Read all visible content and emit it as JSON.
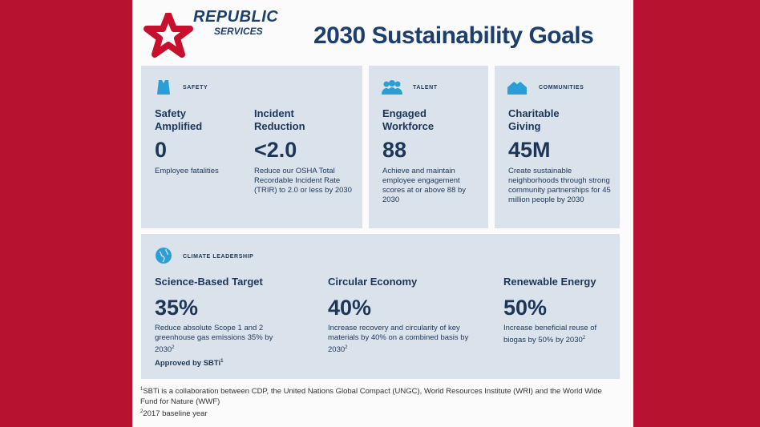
{
  "brand": {
    "name": "REPUBLIC",
    "sub": "SERVICES",
    "logo_color": "#c8102e"
  },
  "title": "2030 Sustainability Goals",
  "colors": {
    "background": "#b7122f",
    "card": "#dae3eb",
    "text": "#1d3658",
    "icon": "#2a9fd6"
  },
  "safety": {
    "category": "SAFETY",
    "icon": "safety-vest-icon",
    "goals": [
      {
        "heading": "Safety Amplified",
        "value": "0",
        "desc": "Employee fatalities"
      },
      {
        "heading": "Incident Reduction",
        "value": "<2.0",
        "desc": "Reduce our OSHA Total Recordable Incident Rate (TRIR) to 2.0 or less by 2030"
      }
    ]
  },
  "talent": {
    "category": "TALENT",
    "icon": "people-icon",
    "heading": "Engaged Workforce",
    "value": "88",
    "desc": "Achieve and maintain employee engagement scores at or above 88 by 2030"
  },
  "communities": {
    "category": "COMMUNITIES",
    "icon": "houses-icon",
    "heading": "Charitable Giving",
    "value": "45M",
    "desc": "Create sustainable neighborhoods through strong community partnerships for 45 million people by 2030"
  },
  "climate": {
    "category": "CLIMATE LEADERSHIP",
    "icon": "globe-icon",
    "goals": [
      {
        "heading": "Science-Based Target",
        "value": "35%",
        "desc": "Reduce absolute Scope 1 and 2 greenhouse gas emissions 35% by 2030",
        "sup": "2",
        "note": "Approved by SBTi",
        "note_sup": "1"
      },
      {
        "heading": "Circular Economy",
        "value": "40%",
        "desc": "Increase recovery and circularity of key materials by 40% on a combined basis by 2030",
        "sup": "2"
      },
      {
        "heading": "Renewable Energy",
        "value": "50%",
        "desc": "Increase beneficial reuse of biogas by 50% by 2030",
        "sup": "2"
      }
    ]
  },
  "footnotes": [
    {
      "mark": "1",
      "text": "SBTi is a collaboration between CDP, the United Nations Global Compact (UNGC), World Resources Institute (WRI) and the World Wide Fund for Nature (WWF)"
    },
    {
      "mark": "2",
      "text": "2017 baseline year"
    }
  ]
}
